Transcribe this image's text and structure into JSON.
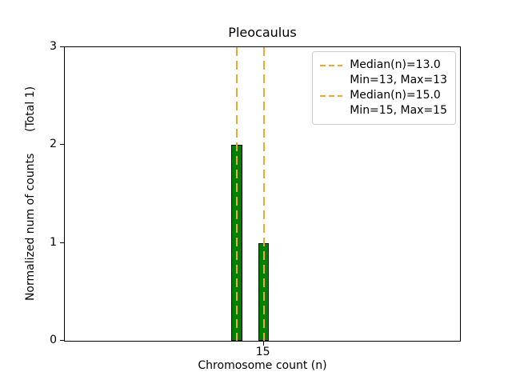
{
  "figure": {
    "title": "Pleocaulus",
    "xlabel": "Chromosome count (n)",
    "ylabel": "Normalized num of counts      (Total 1)"
  },
  "legend": {
    "entries": [
      {
        "line1": "Median(n)=13.0",
        "line2": "Min=13, Max=13"
      },
      {
        "line1": "Median(n)=15.0",
        "line2": "Min=15, Max=15"
      }
    ]
  },
  "chart_data": {
    "type": "bar",
    "title": "Pleocaulus",
    "xlabel": "Chromosome count (n)",
    "ylabel": "Normalized num of counts (Total 1)",
    "xlim": [
      0.3,
      29.5
    ],
    "ylim": [
      0,
      3
    ],
    "xticks": [
      15
    ],
    "yticks": [
      0,
      1,
      2,
      3
    ],
    "grid": false,
    "legend_position": "upper right",
    "bar_width": 0.8,
    "bar_color": "#008000",
    "bar_edge_color": "#000000",
    "bars": [
      {
        "x": 13,
        "height": 2
      },
      {
        "x": 15,
        "height": 1
      }
    ],
    "vline_color": "#f0a830",
    "vlines": [
      {
        "x": 13,
        "label": "Median(n)=13.0, Min=13, Max=13"
      },
      {
        "x": 15,
        "label": "Median(n)=15.0, Min=15, Max=15"
      }
    ]
  }
}
